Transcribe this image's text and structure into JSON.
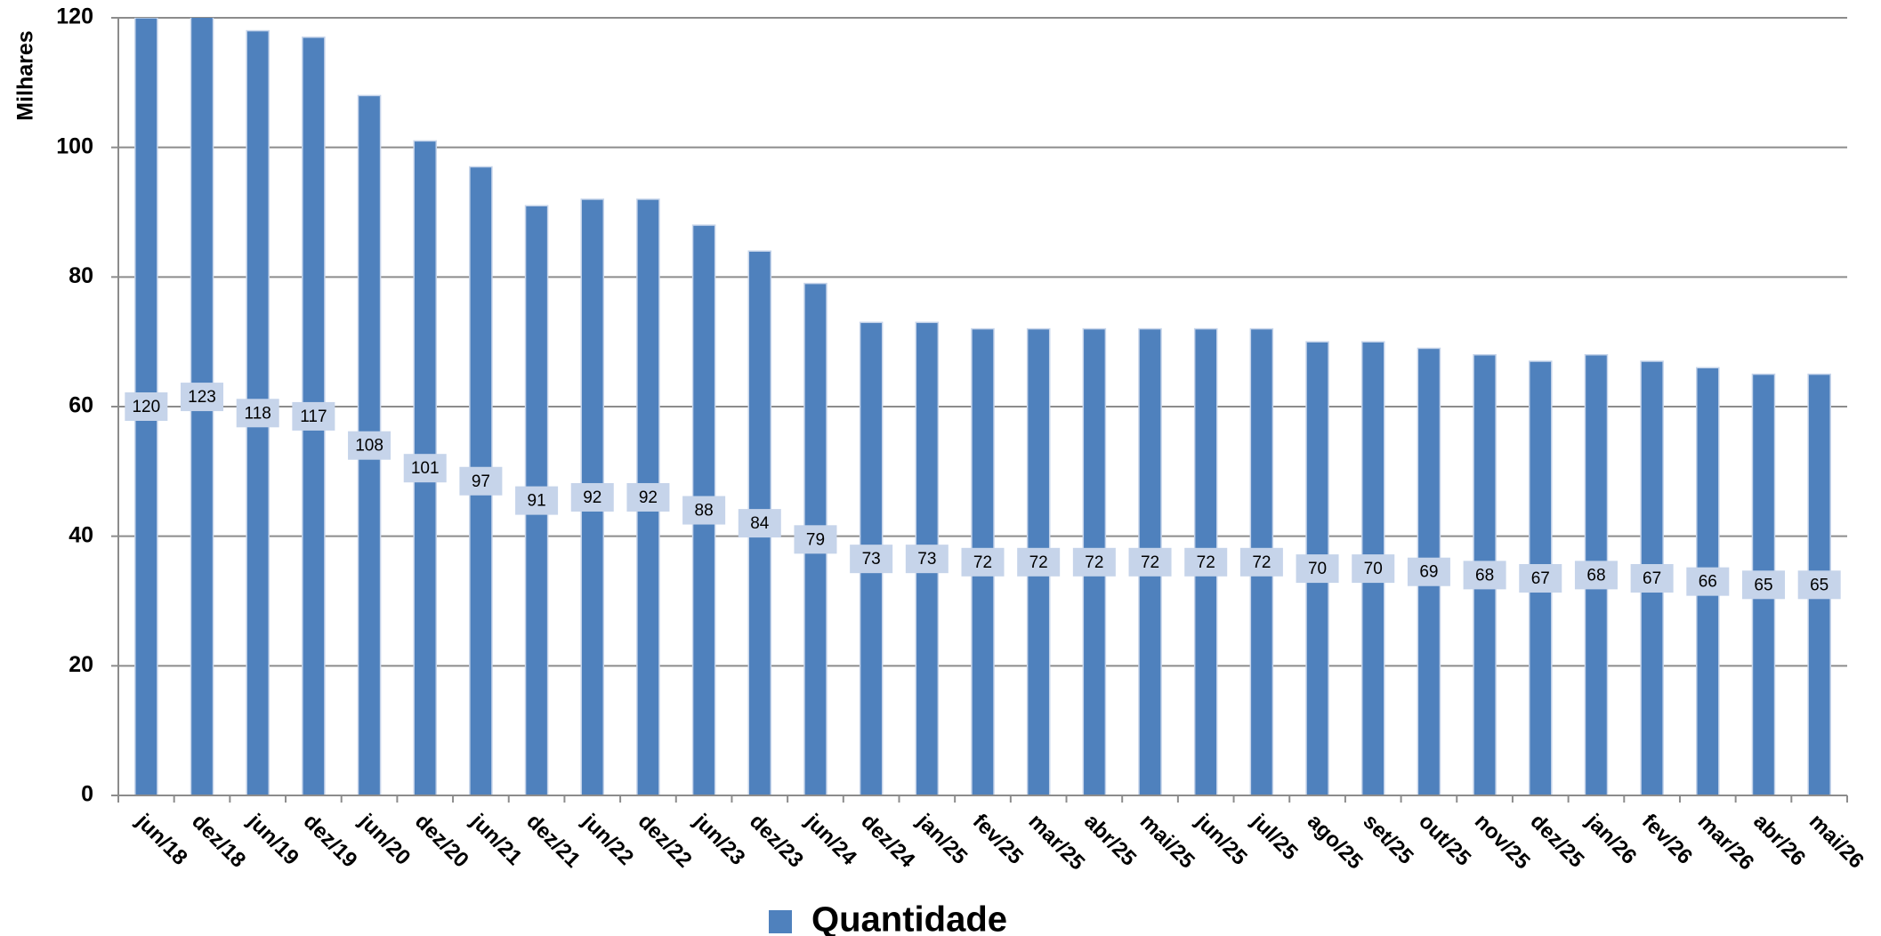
{
  "chart_data": {
    "type": "bar",
    "y_label": "Milhares",
    "categories": [
      "jun/18",
      "dez/18",
      "jun/19",
      "dez/19",
      "jun/20",
      "dez/20",
      "jun/21",
      "dez/21",
      "jun/22",
      "dez/22",
      "jun/23",
      "dez/23",
      "jun/24",
      "dez/24",
      "jan/25",
      "fev/25",
      "mar/25",
      "abr/25",
      "mai/25",
      "jun/25",
      "jul/25",
      "ago/25",
      "set/25",
      "out/25",
      "nov/25",
      "dez/25",
      "jan/26",
      "fev/26",
      "mar/26",
      "abr/26",
      "mai/26"
    ],
    "series": [
      {
        "name": "Quantidade",
        "color": "#4f81bd",
        "values": [
          120,
          123,
          118,
          117,
          108,
          101,
          97,
          91,
          92,
          92,
          88,
          84,
          79,
          73,
          73,
          72,
          72,
          72,
          72,
          72,
          72,
          70,
          70,
          69,
          68,
          67,
          68,
          67,
          66,
          65,
          65
        ]
      }
    ],
    "ylim": [
      0,
      120
    ],
    "yticks": [
      0,
      20,
      40,
      60,
      80,
      100,
      120
    ],
    "grid": true,
    "legend": "bottom"
  }
}
